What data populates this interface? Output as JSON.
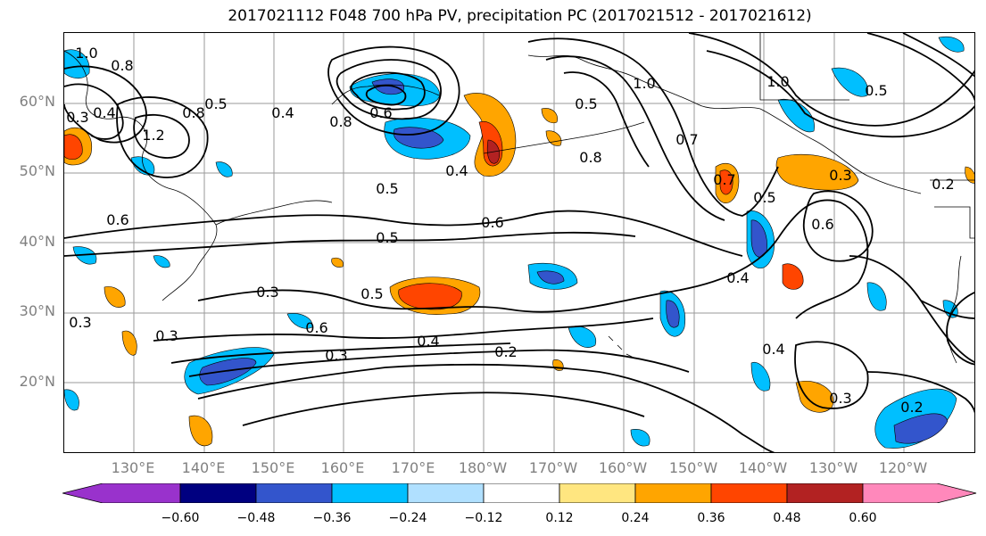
{
  "title": "2017021112 F048 700 hPa PV, precipitation PC (2017021512 - 2017021612)",
  "lat_labels": [
    "60°N",
    "50°N",
    "40°N",
    "30°N",
    "20°N"
  ],
  "lon_labels": [
    "130°E",
    "140°E",
    "150°E",
    "160°E",
    "170°E",
    "180°W",
    "170°W",
    "160°W",
    "150°W",
    "140°W",
    "130°W",
    "120°W"
  ],
  "contour_labels": [
    "1.0",
    "0.8",
    "0.3",
    "0.4",
    "1.2",
    "0.8",
    "0.5",
    "0.4",
    "0.8",
    "0.6",
    "0.4",
    "0.5",
    "0.6",
    "0.5",
    "0.6",
    "0.3",
    "0.5",
    "0.6",
    "0.4",
    "0.2",
    "0.3",
    "0.3",
    "0.3",
    "0.5",
    "0.7",
    "1.0",
    "0.8",
    "0.7",
    "0.4",
    "0.6",
    "0.3",
    "0.4",
    "0.5",
    "0.3",
    "0.2",
    "1.0",
    "0.2",
    "0.5"
  ],
  "colorbar": {
    "ticks": [
      "−0.60",
      "−0.48",
      "−0.36",
      "−0.24",
      "−0.12",
      "0.12",
      "0.24",
      "0.36",
      "0.48",
      "0.60"
    ],
    "colors": [
      "#9932cc",
      "#000080",
      "#3355cc",
      "#00bfff",
      "#b0e0ff",
      "#ffffff",
      "#ffe680",
      "#ffa500",
      "#ff4500",
      "#b22222",
      "#ff88bb"
    ]
  }
}
